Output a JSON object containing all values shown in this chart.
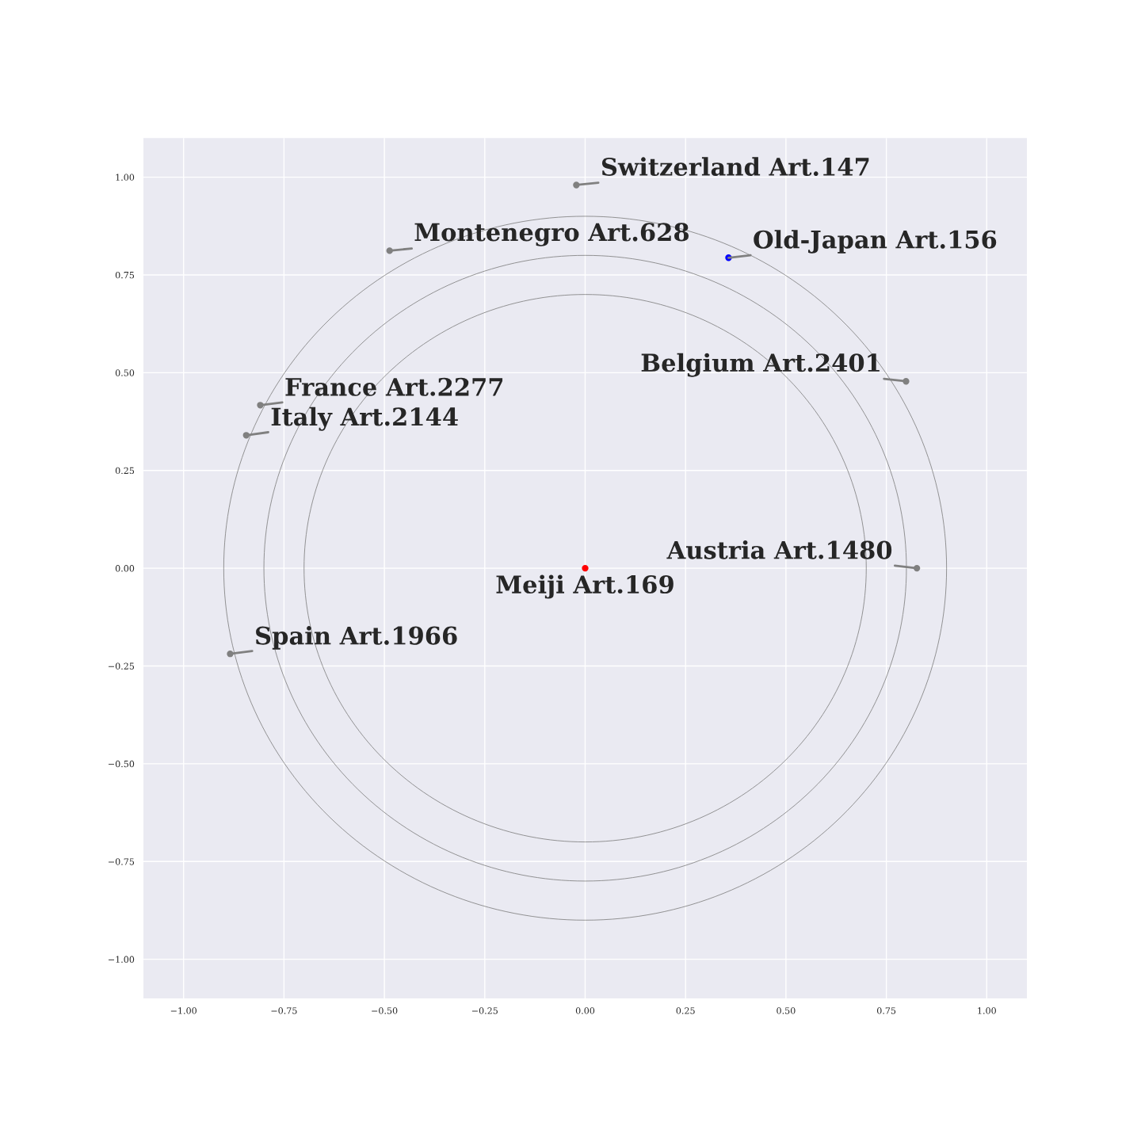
{
  "chart_data": {
    "type": "scatter",
    "xlim": [
      -1.1,
      1.1
    ],
    "ylim": [
      -1.1,
      1.1
    ],
    "xticks": [
      {
        "value": -1,
        "label": "−1.00"
      },
      {
        "value": -0.75,
        "label": "−0.75"
      },
      {
        "value": -0.5,
        "label": "−0.50"
      },
      {
        "value": -0.25,
        "label": "−0.25"
      },
      {
        "value": 0,
        "label": "0.00"
      },
      {
        "value": 0.25,
        "label": "0.25"
      },
      {
        "value": 0.5,
        "label": "0.50"
      },
      {
        "value": 0.75,
        "label": "0.75"
      },
      {
        "value": 1,
        "label": "1.00"
      }
    ],
    "yticks": [
      {
        "value": -1,
        "label": "−1.00"
      },
      {
        "value": -0.75,
        "label": "−0.75"
      },
      {
        "value": -0.5,
        "label": "−0.50"
      },
      {
        "value": -0.25,
        "label": "−0.25"
      },
      {
        "value": 0,
        "label": "0.00"
      },
      {
        "value": 0.25,
        "label": "0.25"
      },
      {
        "value": 0.5,
        "label": "0.50"
      },
      {
        "value": 0.75,
        "label": "0.75"
      },
      {
        "value": 1,
        "label": "1.00"
      }
    ],
    "grid": true,
    "series": [
      {
        "type": "scatter",
        "marker": "circle",
        "x": [
          -0.022,
          -0.487,
          0.357,
          0.799,
          -0.809,
          -0.844,
          0.826,
          0,
          -0.884
        ],
        "values": [
          0.98,
          0.812,
          0.794,
          0.478,
          0.417,
          0.34,
          0,
          0,
          -0.219
        ],
        "colors": [
          "#808080",
          "#808080",
          "#0000ff",
          "#808080",
          "#808080",
          "#808080",
          "#808080",
          "#ff0000",
          "#808080"
        ]
      }
    ],
    "annotations": [
      {
        "text": "Switzerland Art.147",
        "x": -0.022,
        "y": 0.98
      },
      {
        "text": "Montenegro Art.628",
        "x": -0.487,
        "y": 0.812
      },
      {
        "text": "Old-Japan Art.156",
        "x": 0.357,
        "y": 0.794
      },
      {
        "text": "Belgium Art.2401",
        "x": 0.799,
        "y": 0.478
      },
      {
        "text": "France Art.2277",
        "x": -0.809,
        "y": 0.417
      },
      {
        "text": "Italy Art.2144",
        "x": -0.844,
        "y": 0.34
      },
      {
        "text": "Austria Art.1480",
        "x": 0.826,
        "y": 0
      },
      {
        "text": "Meiji Art.169",
        "x": 0,
        "y": 0
      },
      {
        "text": "Spain Art.1966",
        "x": -0.884,
        "y": -0.219
      }
    ]
  }
}
